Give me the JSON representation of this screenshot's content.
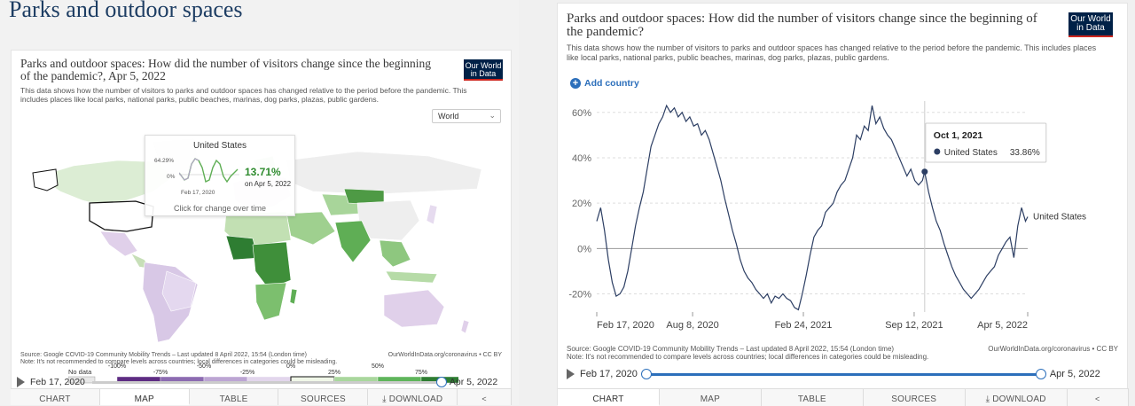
{
  "left": {
    "page_heading": "Parks and outdoor spaces",
    "title": "Parks and outdoor spaces: How did the number of visitors change since the beginning of the pandemic?, Apr 5, 2022",
    "subtitle": "This data shows how the number of visitors to parks and outdoor spaces has changed relative to the period before the pandemic. This includes places like local parks, national parks, public beaches, marinas, dog parks, plazas, public gardens.",
    "logo": "Our World in Data",
    "region": "World",
    "tooltip": {
      "country": "United States",
      "max": "64.29%",
      "zero": "0%",
      "start": "Feb 17, 2020",
      "value": "13.71%",
      "date": "on Apr 5, 2022",
      "hint": "Click for change over time"
    },
    "legend": {
      "no_data": "No data",
      "labels_top": [
        "-100%",
        "-50%",
        "0%",
        "50%"
      ],
      "labels_bottom": [
        "-75%",
        "-25%",
        "25%",
        "75%"
      ],
      "colors": [
        "#5e2c83",
        "#8c6bb1",
        "#bca5d3",
        "#e2d6ec",
        "#f0f7e8",
        "#a9d79d",
        "#5fb55b",
        "#2e7d32"
      ]
    },
    "source": "Source: Google COVID-19 Community Mobility Trends – Last updated 8 April 2022, 15:54 (London time)",
    "note": "Note: It's not recommended to compare levels across countries; local differences in categories could be misleading.",
    "source_url": "OurWorldInData.org/coronavirus • CC BY",
    "slider": {
      "start": "Feb 17, 2020",
      "end": "Apr 5, 2022"
    },
    "tabs": [
      "CHART",
      "MAP",
      "TABLE",
      "SOURCES",
      "DOWNLOAD",
      "share"
    ],
    "active_tab": "MAP"
  },
  "right": {
    "title": "Parks and outdoor spaces: How did the number of visitors change since the beginning of the pandemic?",
    "subtitle": "This data shows how the number of visitors to parks and outdoor spaces has changed relative to the period before the pandemic. This includes places like local parks, national parks, public beaches, marinas, dog parks, plazas, public gardens.",
    "logo": "Our World in Data",
    "add_country": "Add country",
    "tooltip": {
      "date": "Oct 1, 2021",
      "series": "United States",
      "value": "33.86%"
    },
    "source": "Source: Google COVID-19 Community Mobility Trends – Last updated 8 April 2022, 15:54 (London time)",
    "note": "Note: It's not recommended to compare levels across countries; local differences in categories could be misleading.",
    "source_url": "OurWorldInData.org/coronavirus • CC BY",
    "slider": {
      "start": "Feb 17, 2020",
      "end": "Apr 5, 2022"
    },
    "tabs": [
      "CHART",
      "MAP",
      "TABLE",
      "SOURCES",
      "DOWNLOAD",
      "share"
    ],
    "active_tab": "CHART"
  },
  "chart_data": {
    "type": "line",
    "title": "Parks and outdoor spaces: How did the number of visitors change since the beginning of the pandemic?",
    "xlabel": "",
    "ylabel": "",
    "y_unit": "%",
    "ylim": [
      -28,
      65
    ],
    "yticks": [
      -20,
      0,
      20,
      40,
      60
    ],
    "ytick_labels": [
      "-20%",
      "0%",
      "20%",
      "40%",
      "60%"
    ],
    "xlim": [
      "2020-02-17",
      "2022-04-05"
    ],
    "xticks": [
      "2020-02-17",
      "2020-08-08",
      "2021-02-24",
      "2021-09-12",
      "2022-04-05"
    ],
    "xtick_labels": [
      "Feb 17, 2020",
      "Aug 8, 2020",
      "Feb 24, 2021",
      "Sep 12, 2021",
      "Apr 5, 2022"
    ],
    "series": [
      {
        "name": "United States",
        "color": "#2c3e63",
        "points": [
          [
            "2020-02-17",
            12
          ],
          [
            "2020-02-24",
            18
          ],
          [
            "2020-03-02",
            8
          ],
          [
            "2020-03-09",
            -5
          ],
          [
            "2020-03-16",
            -15
          ],
          [
            "2020-03-23",
            -21
          ],
          [
            "2020-03-30",
            -20
          ],
          [
            "2020-04-06",
            -17
          ],
          [
            "2020-04-13",
            -10
          ],
          [
            "2020-04-20",
            0
          ],
          [
            "2020-04-27",
            10
          ],
          [
            "2020-05-04",
            18
          ],
          [
            "2020-05-11",
            25
          ],
          [
            "2020-05-18",
            35
          ],
          [
            "2020-05-25",
            45
          ],
          [
            "2020-06-01",
            50
          ],
          [
            "2020-06-08",
            55
          ],
          [
            "2020-06-15",
            58
          ],
          [
            "2020-06-22",
            63
          ],
          [
            "2020-06-29",
            60
          ],
          [
            "2020-07-06",
            62
          ],
          [
            "2020-07-13",
            58
          ],
          [
            "2020-07-20",
            60
          ],
          [
            "2020-07-27",
            56
          ],
          [
            "2020-08-03",
            58
          ],
          [
            "2020-08-10",
            54
          ],
          [
            "2020-08-17",
            55
          ],
          [
            "2020-08-24",
            50
          ],
          [
            "2020-08-31",
            52
          ],
          [
            "2020-09-07",
            48
          ],
          [
            "2020-09-14",
            42
          ],
          [
            "2020-09-21",
            36
          ],
          [
            "2020-09-28",
            30
          ],
          [
            "2020-10-05",
            22
          ],
          [
            "2020-10-12",
            15
          ],
          [
            "2020-10-19",
            8
          ],
          [
            "2020-10-26",
            2
          ],
          [
            "2020-11-02",
            -5
          ],
          [
            "2020-11-09",
            -10
          ],
          [
            "2020-11-16",
            -13
          ],
          [
            "2020-11-23",
            -15
          ],
          [
            "2020-11-30",
            -18
          ],
          [
            "2020-12-07",
            -20
          ],
          [
            "2020-12-14",
            -22
          ],
          [
            "2020-12-21",
            -20
          ],
          [
            "2020-12-28",
            -24
          ],
          [
            "2021-01-04",
            -21
          ],
          [
            "2021-01-11",
            -22
          ],
          [
            "2021-01-18",
            -20
          ],
          [
            "2021-01-25",
            -22
          ],
          [
            "2021-02-01",
            -23
          ],
          [
            "2021-02-08",
            -26
          ],
          [
            "2021-02-15",
            -27
          ],
          [
            "2021-02-22",
            -20
          ],
          [
            "2021-03-01",
            -12
          ],
          [
            "2021-03-08",
            -3
          ],
          [
            "2021-03-15",
            5
          ],
          [
            "2021-03-22",
            8
          ],
          [
            "2021-03-29",
            10
          ],
          [
            "2021-04-05",
            16
          ],
          [
            "2021-04-12",
            18
          ],
          [
            "2021-04-19",
            20
          ],
          [
            "2021-04-26",
            25
          ],
          [
            "2021-05-03",
            28
          ],
          [
            "2021-05-10",
            30
          ],
          [
            "2021-05-17",
            35
          ],
          [
            "2021-05-24",
            40
          ],
          [
            "2021-05-31",
            50
          ],
          [
            "2021-06-07",
            48
          ],
          [
            "2021-06-14",
            54
          ],
          [
            "2021-06-21",
            52
          ],
          [
            "2021-06-28",
            63
          ],
          [
            "2021-07-05",
            55
          ],
          [
            "2021-07-12",
            58
          ],
          [
            "2021-07-19",
            53
          ],
          [
            "2021-07-26",
            50
          ],
          [
            "2021-08-02",
            48
          ],
          [
            "2021-08-09",
            44
          ],
          [
            "2021-08-16",
            40
          ],
          [
            "2021-08-23",
            36
          ],
          [
            "2021-08-30",
            32
          ],
          [
            "2021-09-06",
            35
          ],
          [
            "2021-09-13",
            30
          ],
          [
            "2021-09-20",
            28
          ],
          [
            "2021-09-27",
            30
          ],
          [
            "2021-10-01",
            33.86
          ],
          [
            "2021-10-08",
            25
          ],
          [
            "2021-10-15",
            18
          ],
          [
            "2021-10-22",
            12
          ],
          [
            "2021-10-29",
            8
          ],
          [
            "2021-11-05",
            2
          ],
          [
            "2021-11-12",
            -3
          ],
          [
            "2021-11-19",
            -8
          ],
          [
            "2021-11-26",
            -12
          ],
          [
            "2021-12-03",
            -15
          ],
          [
            "2021-12-10",
            -18
          ],
          [
            "2021-12-17",
            -20
          ],
          [
            "2021-12-24",
            -22
          ],
          [
            "2021-12-31",
            -20
          ],
          [
            "2022-01-07",
            -18
          ],
          [
            "2022-01-14",
            -15
          ],
          [
            "2022-01-21",
            -12
          ],
          [
            "2022-01-28",
            -10
          ],
          [
            "2022-02-04",
            -8
          ],
          [
            "2022-02-11",
            -3
          ],
          [
            "2022-02-18",
            0
          ],
          [
            "2022-02-25",
            3
          ],
          [
            "2022-03-04",
            5
          ],
          [
            "2022-03-11",
            -4
          ],
          [
            "2022-03-18",
            10
          ],
          [
            "2022-03-25",
            18
          ],
          [
            "2022-04-01",
            12
          ],
          [
            "2022-04-05",
            14
          ]
        ]
      }
    ],
    "highlight": {
      "date": "2021-10-01",
      "value": 33.86
    },
    "grid": true,
    "legend": "right-inline"
  }
}
